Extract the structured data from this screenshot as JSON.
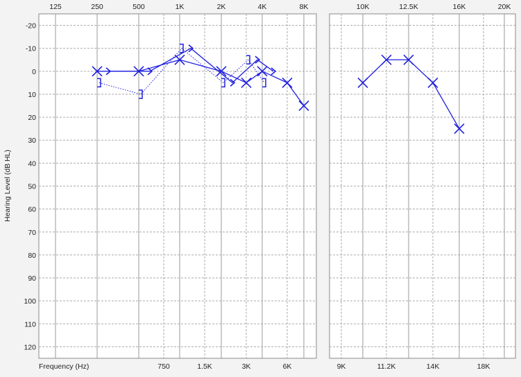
{
  "chart_data": [
    {
      "type": "line",
      "panel": "conventional",
      "top_axis_ticks": [
        "125",
        "250",
        "500",
        "1K",
        "2K",
        "4K",
        "8K"
      ],
      "bottom_axis_ticks": [
        "750",
        "1.5K",
        "3K",
        "6K"
      ],
      "xlabel": "Frequency (Hz)",
      "ylabel": "Hearing Level (dB HL)",
      "y_ticks": [
        -20,
        -10,
        0,
        10,
        20,
        30,
        40,
        50,
        60,
        70,
        80,
        90,
        100,
        110,
        120
      ],
      "ylim": [
        -25,
        125
      ],
      "y_inverted": true,
      "grid": true,
      "series": [
        {
          "symbol": "X",
          "style": "solid",
          "color": "#1f1fe0",
          "points": [
            {
              "x": "250",
              "y": 0
            },
            {
              "x": "500",
              "y": 0
            },
            {
              "x": "1K",
              "y": -5
            },
            {
              "x": "2K",
              "y": 0
            },
            {
              "x": "3K",
              "y": 5
            },
            {
              "x": "4K",
              "y": 0
            },
            {
              "x": "6K",
              "y": 5
            },
            {
              "x": "8K",
              "y": 15
            }
          ]
        },
        {
          "symbol": ">",
          "style": "solid",
          "color": "#1f1fe0",
          "points": [
            {
              "x": "250",
              "y": 0
            },
            {
              "x": "500",
              "y": 0
            },
            {
              "x": "1K",
              "y": -10
            },
            {
              "x": "2K",
              "y": 5
            },
            {
              "x": "3K",
              "y": -5
            },
            {
              "x": "4K",
              "y": 0
            }
          ]
        },
        {
          "symbol": "]",
          "style": "dotted",
          "color": "#1f1fe0",
          "points": [
            {
              "x": "250",
              "y": 5
            },
            {
              "x": "500",
              "y": 10
            },
            {
              "x": "1K",
              "y": -10
            },
            {
              "x": "2K",
              "y": 5
            },
            {
              "x": "3K",
              "y": -5
            },
            {
              "x": "4K",
              "y": 5
            }
          ]
        }
      ]
    },
    {
      "type": "line",
      "panel": "extended-high-frequency",
      "top_axis_ticks": [
        "10K",
        "12.5K",
        "16K",
        "20K"
      ],
      "bottom_axis_ticks": [
        "9K",
        "11.2K",
        "14K",
        "18K"
      ],
      "ylim": [
        -25,
        125
      ],
      "y_inverted": true,
      "grid": true,
      "series": [
        {
          "symbol": "X",
          "style": "solid",
          "color": "#1f1fe0",
          "points": [
            {
              "x": "10K",
              "y": 5
            },
            {
              "x": "11.2K",
              "y": -5
            },
            {
              "x": "12.5K",
              "y": -5
            },
            {
              "x": "14K",
              "y": 5
            },
            {
              "x": "16K",
              "y": 25
            }
          ]
        }
      ]
    }
  ]
}
